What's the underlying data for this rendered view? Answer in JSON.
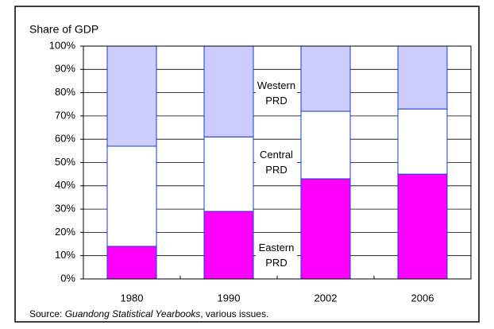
{
  "chart_data": {
    "type": "stacked-bar",
    "y_label": "Share of GDP",
    "categories": [
      "1980",
      "1990",
      "2002",
      "2006"
    ],
    "series": [
      {
        "name": "Eastern PRD",
        "color": "#ff00ff",
        "values": [
          14,
          29,
          43,
          45
        ]
      },
      {
        "name": "Central PRD",
        "color": "#ffffff",
        "values": [
          43,
          32,
          29,
          28
        ]
      },
      {
        "name": "Western PRD",
        "color": "#ccccff",
        "values": [
          43,
          39,
          28,
          27
        ]
      }
    ],
    "ylim": [
      0,
      100
    ],
    "yticks": [
      {
        "value": 0,
        "label": "0%"
      },
      {
        "value": 10,
        "label": "10%"
      },
      {
        "value": 20,
        "label": "20%"
      },
      {
        "value": 30,
        "label": "30%"
      },
      {
        "value": 40,
        "label": "40%"
      },
      {
        "value": 50,
        "label": "50%"
      },
      {
        "value": 60,
        "label": "60%"
      },
      {
        "value": 70,
        "label": "70%"
      },
      {
        "value": 80,
        "label": "80%"
      },
      {
        "value": 90,
        "label": "90%"
      },
      {
        "value": 100,
        "label": "100%"
      }
    ],
    "grid": true,
    "source_prefix": "Source: ",
    "source_title": "Guandong Statistical Yearbooks",
    "source_suffix": ", various issues."
  }
}
